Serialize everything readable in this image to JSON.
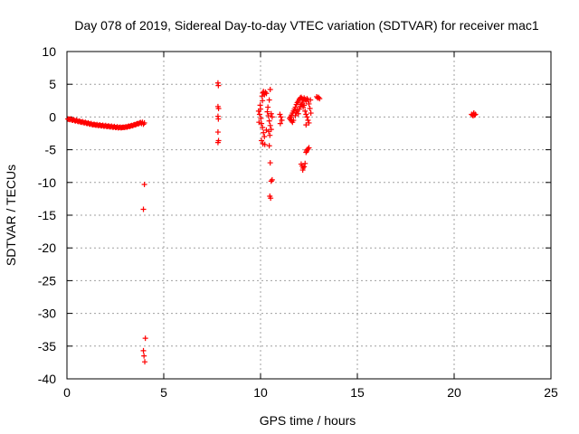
{
  "chart_data": {
    "type": "scatter",
    "title": "Day 078 of 2019, Sidereal Day-to-day VTEC variation (SDTVAR) for receiver mac1",
    "xlabel": "GPS time / hours",
    "ylabel": "SDTVAR / TECUs",
    "xlim": [
      0,
      25
    ],
    "ylim": [
      -40,
      10
    ],
    "xticks": [
      0,
      5,
      10,
      15,
      20,
      25
    ],
    "yticks": [
      -40,
      -35,
      -30,
      -25,
      -20,
      -15,
      -10,
      -5,
      0,
      5,
      10
    ],
    "grid": true,
    "marker": "+",
    "color": "#ff0000",
    "series": [
      {
        "name": "mac1",
        "points": [
          [
            0.05,
            -0.3
          ],
          [
            0.1,
            -0.35
          ],
          [
            0.15,
            -0.4
          ],
          [
            0.2,
            -0.3
          ],
          [
            0.25,
            -0.45
          ],
          [
            0.3,
            -0.5
          ],
          [
            0.35,
            -0.4
          ],
          [
            0.4,
            -0.55
          ],
          [
            0.45,
            -0.6
          ],
          [
            0.5,
            -0.5
          ],
          [
            0.55,
            -0.65
          ],
          [
            0.6,
            -0.7
          ],
          [
            0.65,
            -0.6
          ],
          [
            0.7,
            -0.75
          ],
          [
            0.75,
            -0.8
          ],
          [
            0.8,
            -0.7
          ],
          [
            0.85,
            -0.85
          ],
          [
            0.9,
            -0.9
          ],
          [
            0.95,
            -0.8
          ],
          [
            1.0,
            -0.95
          ],
          [
            1.05,
            -1.0
          ],
          [
            1.1,
            -0.9
          ],
          [
            1.15,
            -1.05
          ],
          [
            1.2,
            -1.1
          ],
          [
            1.25,
            -1.0
          ],
          [
            1.3,
            -1.15
          ],
          [
            1.35,
            -1.2
          ],
          [
            1.4,
            -1.1
          ],
          [
            1.45,
            -1.2
          ],
          [
            1.5,
            -1.25
          ],
          [
            1.55,
            -1.15
          ],
          [
            1.6,
            -1.3
          ],
          [
            1.65,
            -1.3
          ],
          [
            1.7,
            -1.2
          ],
          [
            1.75,
            -1.35
          ],
          [
            1.8,
            -1.35
          ],
          [
            1.85,
            -1.25
          ],
          [
            1.9,
            -1.4
          ],
          [
            1.95,
            -1.4
          ],
          [
            2.0,
            -1.3
          ],
          [
            2.05,
            -1.45
          ],
          [
            2.1,
            -1.45
          ],
          [
            2.15,
            -1.35
          ],
          [
            2.2,
            -1.5
          ],
          [
            2.25,
            -1.5
          ],
          [
            2.3,
            -1.4
          ],
          [
            2.35,
            -1.55
          ],
          [
            2.4,
            -1.55
          ],
          [
            2.45,
            -1.45
          ],
          [
            2.5,
            -1.6
          ],
          [
            2.55,
            -1.6
          ],
          [
            2.6,
            -1.5
          ],
          [
            2.65,
            -1.65
          ],
          [
            2.7,
            -1.6
          ],
          [
            2.75,
            -1.55
          ],
          [
            2.8,
            -1.65
          ],
          [
            2.85,
            -1.6
          ],
          [
            2.9,
            -1.55
          ],
          [
            2.95,
            -1.6
          ],
          [
            3.0,
            -1.55
          ],
          [
            3.05,
            -1.5
          ],
          [
            3.1,
            -1.55
          ],
          [
            3.15,
            -1.45
          ],
          [
            3.2,
            -1.4
          ],
          [
            3.25,
            -1.45
          ],
          [
            3.3,
            -1.35
          ],
          [
            3.35,
            -1.3
          ],
          [
            3.4,
            -1.35
          ],
          [
            3.45,
            -1.2
          ],
          [
            3.5,
            -1.15
          ],
          [
            3.55,
            -1.2
          ],
          [
            3.6,
            -1.05
          ],
          [
            3.65,
            -1.0
          ],
          [
            3.7,
            -1.05
          ],
          [
            3.75,
            -0.9
          ],
          [
            3.8,
            -0.85
          ],
          [
            3.85,
            -1.0
          ],
          [
            3.9,
            -0.8
          ],
          [
            3.95,
            -1.1
          ],
          [
            4.0,
            -0.9
          ],
          [
            4.0,
            -10.3
          ],
          [
            3.95,
            -14.1
          ],
          [
            4.05,
            -33.8
          ],
          [
            3.95,
            -35.7
          ],
          [
            3.98,
            -36.5
          ],
          [
            4.02,
            -37.4
          ],
          [
            7.8,
            5.2
          ],
          [
            7.82,
            4.8
          ],
          [
            7.8,
            1.6
          ],
          [
            7.83,
            1.3
          ],
          [
            7.8,
            0.1
          ],
          [
            7.82,
            -0.3
          ],
          [
            7.8,
            -2.3
          ],
          [
            7.83,
            -3.6
          ],
          [
            7.8,
            -3.9
          ],
          [
            9.9,
            0.9
          ],
          [
            9.95,
            0.4
          ],
          [
            10.0,
            1.2
          ],
          [
            10.02,
            -0.2
          ],
          [
            10.05,
            -1.0
          ],
          [
            9.92,
            -0.8
          ],
          [
            9.98,
            1.8
          ],
          [
            10.1,
            2.5
          ],
          [
            10.08,
            3.2
          ],
          [
            10.12,
            3.7
          ],
          [
            10.15,
            3.9
          ],
          [
            10.2,
            3.4
          ],
          [
            10.25,
            3.8
          ],
          [
            10.3,
            3.6
          ],
          [
            10.1,
            -1.6
          ],
          [
            10.15,
            -2.4
          ],
          [
            10.2,
            -3.0
          ],
          [
            10.05,
            -3.6
          ],
          [
            10.12,
            -4.1
          ],
          [
            10.22,
            -4.2
          ],
          [
            10.3,
            -2.0
          ],
          [
            10.35,
            0.8
          ],
          [
            10.4,
            0.2
          ],
          [
            10.45,
            -0.6
          ],
          [
            10.5,
            -1.3
          ],
          [
            10.42,
            -2.2
          ],
          [
            10.48,
            -2.8
          ],
          [
            10.55,
            -1.9
          ],
          [
            10.38,
            1.5
          ],
          [
            10.5,
            4.2
          ],
          [
            10.45,
            2.6
          ],
          [
            10.55,
            0.5
          ],
          [
            10.6,
            0.0
          ],
          [
            10.45,
            -4.4
          ],
          [
            10.5,
            -7.0
          ],
          [
            10.55,
            -9.8
          ],
          [
            10.6,
            -9.6
          ],
          [
            10.48,
            -12.1
          ],
          [
            10.52,
            -12.4
          ],
          [
            11.0,
            0.4
          ],
          [
            11.05,
            0.0
          ],
          [
            11.1,
            -0.5
          ],
          [
            11.02,
            -1.0
          ],
          [
            11.5,
            -0.2
          ],
          [
            11.55,
            0.0
          ],
          [
            11.6,
            0.3
          ],
          [
            11.65,
            0.6
          ],
          [
            11.7,
            0.9
          ],
          [
            11.75,
            1.2
          ],
          [
            11.8,
            1.5
          ],
          [
            11.85,
            1.9
          ],
          [
            11.9,
            2.2
          ],
          [
            11.95,
            2.4
          ],
          [
            12.0,
            2.7
          ],
          [
            12.05,
            2.9
          ],
          [
            12.1,
            3.0
          ],
          [
            12.15,
            2.8
          ],
          [
            12.2,
            2.6
          ],
          [
            12.25,
            2.9
          ],
          [
            12.3,
            2.7
          ],
          [
            12.35,
            2.4
          ],
          [
            12.4,
            2.8
          ],
          [
            12.45,
            2.6
          ],
          [
            11.55,
            -0.4
          ],
          [
            11.6,
            -0.6
          ],
          [
            11.65,
            -0.8
          ],
          [
            11.7,
            -0.5
          ],
          [
            11.8,
            0.2
          ],
          [
            11.85,
            0.7
          ],
          [
            11.9,
            1.0
          ],
          [
            11.95,
            0.5
          ],
          [
            12.0,
            1.2
          ],
          [
            12.05,
            1.6
          ],
          [
            12.1,
            1.9
          ],
          [
            12.15,
            2.1
          ],
          [
            12.2,
            1.5
          ],
          [
            12.25,
            1.8
          ],
          [
            12.3,
            0.9
          ],
          [
            12.35,
            0.4
          ],
          [
            12.4,
            0.0
          ],
          [
            12.45,
            -0.5
          ],
          [
            12.5,
            -0.9
          ],
          [
            12.35,
            -1.2
          ],
          [
            12.55,
            1.3
          ],
          [
            12.6,
            0.6
          ],
          [
            12.5,
            2.0
          ],
          [
            12.58,
            2.6
          ],
          [
            12.1,
            -7.2
          ],
          [
            12.15,
            -7.5
          ],
          [
            12.2,
            -7.8
          ],
          [
            12.25,
            -7.6
          ],
          [
            12.18,
            -8.1
          ],
          [
            12.3,
            -7.1
          ],
          [
            12.35,
            -5.4
          ],
          [
            12.4,
            -5.0
          ],
          [
            12.45,
            -4.9
          ],
          [
            12.5,
            -4.7
          ],
          [
            12.38,
            -5.2
          ],
          [
            12.9,
            3.1
          ],
          [
            12.95,
            2.9
          ],
          [
            13.0,
            3.0
          ],
          [
            13.05,
            2.8
          ],
          [
            20.9,
            0.4
          ],
          [
            20.95,
            0.3
          ],
          [
            21.0,
            0.5
          ],
          [
            21.05,
            0.3
          ],
          [
            21.1,
            0.4
          ],
          [
            20.98,
            0.2
          ],
          [
            21.02,
            0.6
          ]
        ]
      }
    ]
  }
}
